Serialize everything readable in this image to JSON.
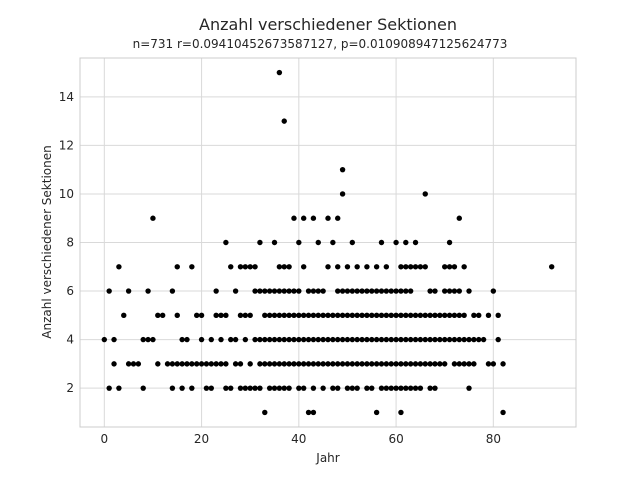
{
  "chart_data": {
    "type": "scatter",
    "title": "Anzahl verschiedener Sektionen",
    "subtitle": "n=731 r=0.09410452673587127, p=0.010908947125624773",
    "xlabel": "Jahr",
    "ylabel": "Anzahl verschiedener Sektionen",
    "xlim": [
      -5,
      97
    ],
    "ylim": [
      0.4,
      15.6
    ],
    "xticks": [
      0,
      20,
      40,
      60,
      80
    ],
    "yticks": [
      2,
      4,
      6,
      8,
      10,
      12,
      14
    ],
    "grid": true,
    "marker_color": "#000000",
    "points": [
      [
        0,
        4
      ],
      [
        1,
        6
      ],
      [
        1,
        2
      ],
      [
        2,
        4
      ],
      [
        2,
        3
      ],
      [
        3,
        7
      ],
      [
        3,
        2
      ],
      [
        4,
        5
      ],
      [
        5,
        6
      ],
      [
        5,
        3
      ],
      [
        6,
        3
      ],
      [
        7,
        3
      ],
      [
        8,
        2
      ],
      [
        8,
        4
      ],
      [
        9,
        6
      ],
      [
        9,
        4
      ],
      [
        10,
        9
      ],
      [
        10,
        4
      ],
      [
        11,
        5
      ],
      [
        11,
        3
      ],
      [
        12,
        5
      ],
      [
        13,
        3
      ],
      [
        14,
        6
      ],
      [
        14,
        3
      ],
      [
        14,
        2
      ],
      [
        15,
        7
      ],
      [
        15,
        3
      ],
      [
        15,
        5
      ],
      [
        16,
        4
      ],
      [
        16,
        3
      ],
      [
        16,
        2
      ],
      [
        17,
        4
      ],
      [
        17,
        3
      ],
      [
        18,
        7
      ],
      [
        18,
        3
      ],
      [
        18,
        2
      ],
      [
        19,
        5
      ],
      [
        19,
        3
      ],
      [
        20,
        5
      ],
      [
        20,
        4
      ],
      [
        20,
        3
      ],
      [
        21,
        3
      ],
      [
        21,
        2
      ],
      [
        22,
        4
      ],
      [
        22,
        3
      ],
      [
        22,
        2
      ],
      [
        23,
        6
      ],
      [
        23,
        5
      ],
      [
        23,
        3
      ],
      [
        24,
        5
      ],
      [
        24,
        4
      ],
      [
        24,
        3
      ],
      [
        25,
        8
      ],
      [
        25,
        5
      ],
      [
        25,
        3
      ],
      [
        25,
        2
      ],
      [
        26,
        7
      ],
      [
        26,
        4
      ],
      [
        26,
        2
      ],
      [
        27,
        6
      ],
      [
        27,
        4
      ],
      [
        27,
        3
      ],
      [
        28,
        7
      ],
      [
        28,
        5
      ],
      [
        28,
        3
      ],
      [
        28,
        2
      ],
      [
        29,
        7
      ],
      [
        29,
        5
      ],
      [
        29,
        4
      ],
      [
        29,
        2
      ],
      [
        30,
        7
      ],
      [
        30,
        5
      ],
      [
        30,
        3
      ],
      [
        30,
        2
      ],
      [
        31,
        7
      ],
      [
        31,
        6
      ],
      [
        31,
        4
      ],
      [
        31,
        2
      ],
      [
        32,
        8
      ],
      [
        32,
        6
      ],
      [
        32,
        4
      ],
      [
        32,
        3
      ],
      [
        32,
        2
      ],
      [
        33,
        6
      ],
      [
        33,
        5
      ],
      [
        33,
        4
      ],
      [
        33,
        3
      ],
      [
        33,
        1
      ],
      [
        34,
        6
      ],
      [
        34,
        5
      ],
      [
        34,
        4
      ],
      [
        34,
        3
      ],
      [
        34,
        2
      ],
      [
        35,
        8
      ],
      [
        35,
        6
      ],
      [
        35,
        5
      ],
      [
        35,
        4
      ],
      [
        35,
        3
      ],
      [
        35,
        2
      ],
      [
        36,
        15
      ],
      [
        36,
        7
      ],
      [
        36,
        6
      ],
      [
        36,
        5
      ],
      [
        36,
        4
      ],
      [
        36,
        3
      ],
      [
        36,
        2
      ],
      [
        37,
        13
      ],
      [
        37,
        7
      ],
      [
        37,
        6
      ],
      [
        37,
        5
      ],
      [
        37,
        4
      ],
      [
        37,
        3
      ],
      [
        37,
        2
      ],
      [
        38,
        7
      ],
      [
        38,
        6
      ],
      [
        38,
        5
      ],
      [
        38,
        4
      ],
      [
        38,
        3
      ],
      [
        38,
        2
      ],
      [
        39,
        9
      ],
      [
        39,
        6
      ],
      [
        39,
        5
      ],
      [
        39,
        4
      ],
      [
        39,
        3
      ],
      [
        40,
        8
      ],
      [
        40,
        6
      ],
      [
        40,
        5
      ],
      [
        40,
        4
      ],
      [
        40,
        3
      ],
      [
        40,
        2
      ],
      [
        41,
        9
      ],
      [
        41,
        7
      ],
      [
        41,
        5
      ],
      [
        41,
        4
      ],
      [
        41,
        3
      ],
      [
        41,
        2
      ],
      [
        42,
        6
      ],
      [
        42,
        5
      ],
      [
        42,
        4
      ],
      [
        42,
        3
      ],
      [
        42,
        1
      ],
      [
        43,
        9
      ],
      [
        43,
        6
      ],
      [
        43,
        5
      ],
      [
        43,
        4
      ],
      [
        43,
        3
      ],
      [
        43,
        2
      ],
      [
        43,
        1
      ],
      [
        44,
        8
      ],
      [
        44,
        6
      ],
      [
        44,
        5
      ],
      [
        44,
        4
      ],
      [
        44,
        3
      ],
      [
        45,
        6
      ],
      [
        45,
        5
      ],
      [
        45,
        4
      ],
      [
        45,
        3
      ],
      [
        45,
        2
      ],
      [
        46,
        9
      ],
      [
        46,
        7
      ],
      [
        46,
        5
      ],
      [
        46,
        4
      ],
      [
        46,
        3
      ],
      [
        47,
        8
      ],
      [
        47,
        5
      ],
      [
        47,
        4
      ],
      [
        47,
        3
      ],
      [
        47,
        2
      ],
      [
        48,
        9
      ],
      [
        48,
        7
      ],
      [
        48,
        6
      ],
      [
        48,
        5
      ],
      [
        48,
        4
      ],
      [
        48,
        3
      ],
      [
        48,
        2
      ],
      [
        49,
        11
      ],
      [
        49,
        10
      ],
      [
        49,
        6
      ],
      [
        49,
        5
      ],
      [
        49,
        4
      ],
      [
        49,
        3
      ],
      [
        50,
        7
      ],
      [
        50,
        6
      ],
      [
        50,
        5
      ],
      [
        50,
        4
      ],
      [
        50,
        3
      ],
      [
        50,
        2
      ],
      [
        51,
        8
      ],
      [
        51,
        6
      ],
      [
        51,
        5
      ],
      [
        51,
        4
      ],
      [
        51,
        3
      ],
      [
        51,
        2
      ],
      [
        52,
        7
      ],
      [
        52,
        6
      ],
      [
        52,
        5
      ],
      [
        52,
        4
      ],
      [
        52,
        3
      ],
      [
        52,
        2
      ],
      [
        53,
        6
      ],
      [
        53,
        5
      ],
      [
        53,
        4
      ],
      [
        53,
        3
      ],
      [
        54,
        7
      ],
      [
        54,
        6
      ],
      [
        54,
        5
      ],
      [
        54,
        4
      ],
      [
        54,
        3
      ],
      [
        54,
        2
      ],
      [
        55,
        6
      ],
      [
        55,
        5
      ],
      [
        55,
        4
      ],
      [
        55,
        3
      ],
      [
        55,
        2
      ],
      [
        56,
        7
      ],
      [
        56,
        6
      ],
      [
        56,
        5
      ],
      [
        56,
        4
      ],
      [
        56,
        3
      ],
      [
        56,
        1
      ],
      [
        57,
        8
      ],
      [
        57,
        6
      ],
      [
        57,
        5
      ],
      [
        57,
        4
      ],
      [
        57,
        3
      ],
      [
        57,
        2
      ],
      [
        58,
        7
      ],
      [
        58,
        6
      ],
      [
        58,
        5
      ],
      [
        58,
        4
      ],
      [
        58,
        3
      ],
      [
        58,
        2
      ],
      [
        59,
        6
      ],
      [
        59,
        5
      ],
      [
        59,
        4
      ],
      [
        59,
        3
      ],
      [
        59,
        2
      ],
      [
        60,
        8
      ],
      [
        60,
        6
      ],
      [
        60,
        5
      ],
      [
        60,
        4
      ],
      [
        60,
        3
      ],
      [
        60,
        2
      ],
      [
        61,
        7
      ],
      [
        61,
        6
      ],
      [
        61,
        5
      ],
      [
        61,
        4
      ],
      [
        61,
        3
      ],
      [
        61,
        2
      ],
      [
        61,
        1
      ],
      [
        62,
        8
      ],
      [
        62,
        7
      ],
      [
        62,
        6
      ],
      [
        62,
        5
      ],
      [
        62,
        4
      ],
      [
        62,
        3
      ],
      [
        62,
        2
      ],
      [
        63,
        7
      ],
      [
        63,
        6
      ],
      [
        63,
        5
      ],
      [
        63,
        4
      ],
      [
        63,
        3
      ],
      [
        63,
        2
      ],
      [
        64,
        8
      ],
      [
        64,
        7
      ],
      [
        64,
        5
      ],
      [
        64,
        4
      ],
      [
        64,
        3
      ],
      [
        64,
        2
      ],
      [
        65,
        7
      ],
      [
        65,
        5
      ],
      [
        65,
        4
      ],
      [
        65,
        3
      ],
      [
        65,
        2
      ],
      [
        66,
        10
      ],
      [
        66,
        7
      ],
      [
        66,
        5
      ],
      [
        66,
        4
      ],
      [
        66,
        3
      ],
      [
        67,
        6
      ],
      [
        67,
        5
      ],
      [
        67,
        4
      ],
      [
        67,
        3
      ],
      [
        67,
        2
      ],
      [
        68,
        6
      ],
      [
        68,
        5
      ],
      [
        68,
        4
      ],
      [
        68,
        3
      ],
      [
        68,
        2
      ],
      [
        69,
        5
      ],
      [
        69,
        4
      ],
      [
        69,
        3
      ],
      [
        70,
        7
      ],
      [
        70,
        6
      ],
      [
        70,
        5
      ],
      [
        70,
        4
      ],
      [
        70,
        3
      ],
      [
        71,
        8
      ],
      [
        71,
        7
      ],
      [
        71,
        6
      ],
      [
        71,
        5
      ],
      [
        71,
        4
      ],
      [
        72,
        7
      ],
      [
        72,
        6
      ],
      [
        72,
        5
      ],
      [
        72,
        4
      ],
      [
        72,
        3
      ],
      [
        73,
        9
      ],
      [
        73,
        6
      ],
      [
        73,
        5
      ],
      [
        73,
        4
      ],
      [
        73,
        3
      ],
      [
        74,
        7
      ],
      [
        74,
        5
      ],
      [
        74,
        4
      ],
      [
        74,
        3
      ],
      [
        75,
        6
      ],
      [
        75,
        4
      ],
      [
        75,
        3
      ],
      [
        75,
        2
      ],
      [
        76,
        5
      ],
      [
        76,
        4
      ],
      [
        76,
        3
      ],
      [
        77,
        5
      ],
      [
        77,
        4
      ],
      [
        78,
        4
      ],
      [
        79,
        5
      ],
      [
        79,
        3
      ],
      [
        80,
        6
      ],
      [
        80,
        3
      ],
      [
        81,
        5
      ],
      [
        81,
        4
      ],
      [
        82,
        3
      ],
      [
        82,
        1
      ],
      [
        92,
        7
      ]
    ]
  }
}
